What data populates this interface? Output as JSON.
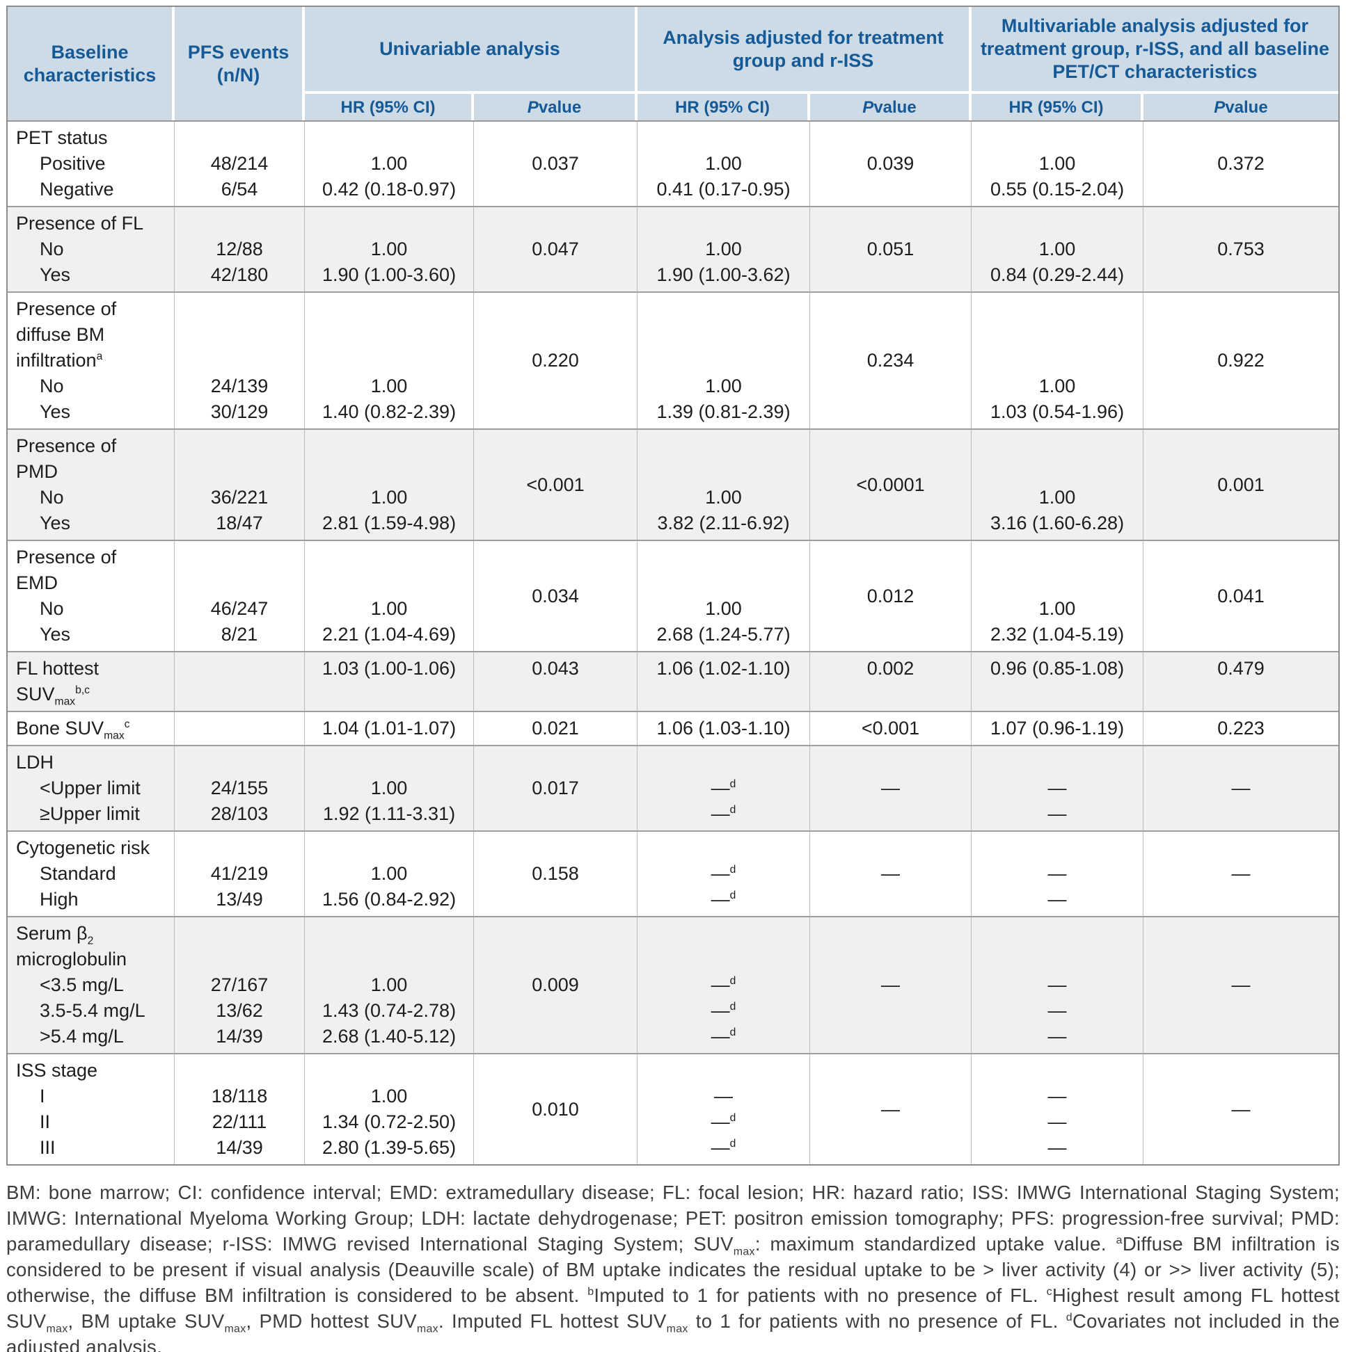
{
  "colors": {
    "header_bg": "#cddbe7",
    "header_text": "#155a96",
    "shaded_row_bg": "#f0f0f0",
    "section_border": "#9e9e9e",
    "outer_border": "#8d8d8d",
    "body_text": "#1d1d1d"
  },
  "table": {
    "header": {
      "baseline_col": "Baseline characteristics",
      "pfs_col": "PFS events (n/N)",
      "groups": [
        "Univariable analysis",
        "Analysis adjusted for treatment group and r-ISS",
        "Multivariable analysis adjusted for treatment group, r-ISS, and all baseline PET/CT characteristics"
      ],
      "hr_label": "HR (95% CI)",
      "p_label": "*P* value"
    },
    "sections": [
      {
        "name": "pet-status",
        "shaded": false,
        "label": [
          {
            "text": "PET status"
          },
          {
            "text": "Positive",
            "indent": true
          },
          {
            "text": "Negative",
            "indent": true
          }
        ],
        "pfs": [
          "",
          "48/214",
          "6/54"
        ],
        "uni_hr": [
          "",
          "1.00",
          "0.42 (0.18-0.97)"
        ],
        "uni_p": "0.037",
        "adj_hr": [
          "",
          "1.00",
          "0.41 (0.17-0.95)"
        ],
        "adj_p": "0.039",
        "multi_hr": [
          "",
          "1.00",
          "0.55 (0.15-2.04)"
        ],
        "multi_p": "0.372"
      },
      {
        "name": "presence-of-fl",
        "shaded": true,
        "label": [
          {
            "text": "Presence of FL"
          },
          {
            "text": "No",
            "indent": true
          },
          {
            "text": "Yes",
            "indent": true
          }
        ],
        "pfs": [
          "",
          "12/88",
          "42/180"
        ],
        "uni_hr": [
          "",
          "1.00",
          "1.90 (1.00-3.60)"
        ],
        "uni_p": "0.047",
        "adj_hr": [
          "",
          "1.00",
          "1.90 (1.00-3.62)"
        ],
        "adj_p": "0.051",
        "multi_hr": [
          "",
          "1.00",
          "0.84 (0.29-2.44)"
        ],
        "multi_p": "0.753"
      },
      {
        "name": "diffuse-bm-infiltration",
        "shaded": false,
        "label": [
          {
            "text": "Presence of"
          },
          {
            "text": "diffuse BM"
          },
          {
            "text": "infiltration^a^"
          },
          {
            "text": "No",
            "indent": true
          },
          {
            "text": "Yes",
            "indent": true
          }
        ],
        "pfs": [
          "",
          "",
          "",
          "24/139",
          "30/129"
        ],
        "uni_hr": [
          "",
          "",
          "",
          "1.00",
          "1.40 (0.82-2.39)"
        ],
        "uni_p": "0.220",
        "adj_hr": [
          "",
          "",
          "",
          "1.00",
          "1.39 (0.81-2.39)"
        ],
        "adj_p": "0.234",
        "multi_hr": [
          "",
          "",
          "",
          "1.00",
          "1.03 (0.54-1.96)"
        ],
        "multi_p": "0.922"
      },
      {
        "name": "presence-of-pmd",
        "shaded": true,
        "label": [
          {
            "text": "Presence of"
          },
          {
            "text": "PMD"
          },
          {
            "text": "No",
            "indent": true
          },
          {
            "text": "Yes",
            "indent": true
          }
        ],
        "pfs": [
          "",
          "",
          "36/221",
          "18/47"
        ],
        "uni_hr": [
          "",
          "",
          "1.00",
          "2.81 (1.59-4.98)"
        ],
        "uni_p": "<0.001",
        "adj_hr": [
          "",
          "",
          "1.00",
          "3.82 (2.11-6.92)"
        ],
        "adj_p": "<0.0001",
        "multi_hr": [
          "",
          "",
          "1.00",
          "3.16 (1.60-6.28)"
        ],
        "multi_p": "0.001"
      },
      {
        "name": "presence-of-emd",
        "shaded": false,
        "label": [
          {
            "text": "Presence of"
          },
          {
            "text": "EMD"
          },
          {
            "text": "No",
            "indent": true
          },
          {
            "text": "Yes",
            "indent": true
          }
        ],
        "pfs": [
          "",
          "",
          "46/247",
          "8/21"
        ],
        "uni_hr": [
          "",
          "",
          "1.00",
          "2.21 (1.04-4.69)"
        ],
        "uni_p": "0.034",
        "adj_hr": [
          "",
          "",
          "1.00",
          "2.68 (1.24-5.77)"
        ],
        "adj_p": "0.012",
        "multi_hr": [
          "",
          "",
          "1.00",
          "2.32 (1.04-5.19)"
        ],
        "multi_p": "0.041"
      },
      {
        "name": "fl-hottest-suvmax",
        "shaded": true,
        "label": [
          {
            "text": "FL hottest"
          },
          {
            "text": "SUV~max~^b,c^"
          }
        ],
        "pfs": [
          "",
          ""
        ],
        "uni_hr": [
          "1.03 (1.00-1.06)",
          ""
        ],
        "uni_p": [
          "0.043",
          ""
        ],
        "adj_hr": [
          "1.06 (1.02-1.10)",
          ""
        ],
        "adj_p": [
          "0.002",
          ""
        ],
        "multi_hr": [
          "0.96 (0.85-1.08)",
          ""
        ],
        "multi_p": [
          "0.479",
          ""
        ]
      },
      {
        "name": "bone-suvmax",
        "shaded": false,
        "label": [
          {
            "text": "Bone SUV~max~^c^"
          }
        ],
        "pfs": [
          ""
        ],
        "uni_hr": [
          "1.04 (1.01-1.07)"
        ],
        "uni_p": [
          "0.021"
        ],
        "adj_hr": [
          "1.06 (1.03-1.10)"
        ],
        "adj_p": [
          "<0.001"
        ],
        "multi_hr": [
          "1.07 (0.96-1.19)"
        ],
        "multi_p": [
          "0.223"
        ]
      },
      {
        "name": "ldh",
        "shaded": true,
        "label": [
          {
            "text": "LDH"
          },
          {
            "text": "<Upper limit",
            "indent": true
          },
          {
            "text": "≥Upper limit",
            "indent": true
          }
        ],
        "pfs": [
          "",
          "24/155",
          "28/103"
        ],
        "uni_hr": [
          "",
          "1.00",
          "1.92 (1.11-3.31)"
        ],
        "uni_p": "0.017",
        "adj_hr": [
          "",
          "—^d^",
          "—^d^"
        ],
        "adj_p": "—",
        "multi_hr": [
          "",
          "—",
          "—"
        ],
        "multi_p": "—"
      },
      {
        "name": "cytogenetic-risk",
        "shaded": false,
        "label": [
          {
            "text": "Cytogenetic risk"
          },
          {
            "text": "Standard",
            "indent": true
          },
          {
            "text": "High",
            "indent": true
          }
        ],
        "pfs": [
          "",
          "41/219",
          "13/49"
        ],
        "uni_hr": [
          "",
          "1.00",
          "1.56 (0.84-2.92)"
        ],
        "uni_p": "0.158",
        "adj_hr": [
          "",
          "—^d^",
          "—^d^"
        ],
        "adj_p": "—",
        "multi_hr": [
          "",
          "—",
          "—"
        ],
        "multi_p": "—"
      },
      {
        "name": "serum-beta2-microglobulin",
        "shaded": true,
        "label": [
          {
            "text": "Serum β~2~"
          },
          {
            "text": "microglobulin"
          },
          {
            "text": "<3.5 mg/L",
            "indent": true
          },
          {
            "text": "3.5-5.4 mg/L",
            "indent": true
          },
          {
            "text": ">5.4 mg/L",
            "indent": true
          }
        ],
        "pfs": [
          "",
          "",
          "27/167",
          "13/62",
          "14/39"
        ],
        "uni_hr": [
          "",
          "",
          "1.00",
          "1.43 (0.74-2.78)",
          "2.68 (1.40-5.12)"
        ],
        "uni_p": "0.009",
        "adj_hr": [
          "",
          "",
          "—^d^",
          "—^d^",
          "—^d^"
        ],
        "adj_p": "—",
        "multi_hr": [
          "",
          "",
          "—",
          "—",
          "—"
        ],
        "multi_p": "—"
      },
      {
        "name": "iss-stage",
        "shaded": false,
        "label": [
          {
            "text": "ISS stage"
          },
          {
            "text": "I",
            "indent": true
          },
          {
            "text": "II",
            "indent": true
          },
          {
            "text": "III",
            "indent": true
          }
        ],
        "pfs": [
          "",
          "18/118",
          "22/111",
          "14/39"
        ],
        "uni_hr": [
          "",
          "1.00",
          "1.34 (0.72-2.50)",
          "2.80 (1.39-5.65)"
        ],
        "uni_p": "0.010",
        "adj_hr": [
          "",
          "—",
          "—^d^",
          "—^d^"
        ],
        "adj_p": "—",
        "multi_hr": [
          "",
          "—",
          "—",
          "—"
        ],
        "multi_p": "—"
      }
    ]
  },
  "footnote": "BM: bone marrow; CI: confidence interval; EMD: extramedullary disease; FL: focal lesion; HR: hazard ratio; ISS: IMWG International Staging System; IMWG: International Myeloma Working Group; LDH: lactate dehydrogenase; PET: positron emission tomography; PFS: progression-free survival; PMD: paramedullary disease; r-ISS: IMWG revised International Staging System; SUV~max~: maximum standardized uptake value. ^a^Diffuse BM infiltration is considered to be present if visual analysis (Deauville scale) of BM uptake indicates the residual uptake to be > liver activity (4) or >> liver activity (5); otherwise, the diffuse BM infiltration is considered to be absent. ^b^Imputed to 1 for patients with no presence of FL. ^c^Highest result among FL hottest SUV~max~, BM uptake SUV~max~, PMD hottest SUV~max~. Imputed FL hottest SUV~max~ to 1 for patients with no presence of FL. ^d^Covariates not included in the adjusted analysis."
}
